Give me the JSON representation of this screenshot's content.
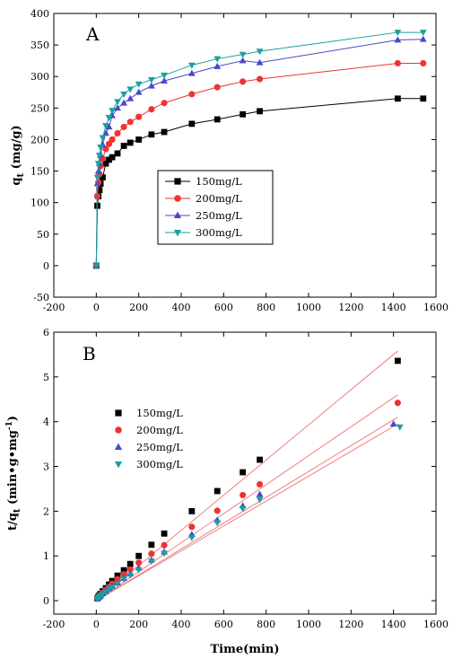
{
  "chart_data": [
    {
      "type": "line",
      "panel_label": "A",
      "title": "",
      "xlabel": "",
      "ylabel": "q",
      "ylabel_sub": "t",
      "ylabel_unit": " (mg/g)",
      "xlim": [
        -200,
        1600
      ],
      "ylim": [
        -50,
        400
      ],
      "xticks": [
        -200,
        0,
        200,
        400,
        600,
        800,
        1000,
        1200,
        1400,
        1600
      ],
      "yticks": [
        -50,
        0,
        50,
        100,
        150,
        200,
        250,
        300,
        350,
        400
      ],
      "legend_position": "center",
      "series": [
        {
          "name": "150mg/L",
          "color": "#000000",
          "marker": "square",
          "x": [
            0,
            5,
            10,
            15,
            20,
            30,
            45,
            60,
            75,
            100,
            130,
            160,
            200,
            260,
            320,
            450,
            570,
            690,
            770,
            1420,
            1540
          ],
          "y": [
            0,
            95,
            110,
            120,
            130,
            140,
            162,
            168,
            172,
            178,
            190,
            195,
            200,
            208,
            212,
            225,
            232,
            240,
            245,
            265,
            265
          ]
        },
        {
          "name": "200mg/L",
          "color": "#ee3333",
          "marker": "circle",
          "x": [
            0,
            5,
            10,
            15,
            20,
            30,
            45,
            60,
            75,
            100,
            130,
            160,
            200,
            260,
            320,
            450,
            570,
            690,
            770,
            1420,
            1540
          ],
          "y": [
            0,
            110,
            132,
            145,
            158,
            170,
            185,
            193,
            200,
            210,
            220,
            228,
            236,
            248,
            258,
            272,
            283,
            292,
            296,
            321,
            321
          ]
        },
        {
          "name": "250mg/L",
          "color": "#4848c8",
          "marker": "triangle-up",
          "x": [
            0,
            5,
            10,
            15,
            20,
            30,
            45,
            60,
            75,
            100,
            130,
            160,
            200,
            260,
            320,
            450,
            570,
            690,
            770,
            1420,
            1540
          ],
          "y": [
            0,
            130,
            150,
            162,
            175,
            192,
            210,
            220,
            238,
            250,
            258,
            265,
            275,
            285,
            293,
            305,
            316,
            325,
            322,
            358,
            359
          ]
        },
        {
          "name": "300mg/L",
          "color": "#1aa0a0",
          "marker": "triangle-down",
          "x": [
            0,
            5,
            10,
            15,
            20,
            30,
            45,
            60,
            75,
            100,
            130,
            160,
            200,
            260,
            320,
            450,
            570,
            690,
            770,
            1420,
            1540
          ],
          "y": [
            0,
            140,
            162,
            175,
            188,
            203,
            222,
            235,
            246,
            260,
            272,
            280,
            288,
            295,
            302,
            318,
            328,
            335,
            340,
            370,
            370
          ]
        }
      ]
    },
    {
      "type": "scatter",
      "panel_label": "B",
      "title": "",
      "xlabel": "Time(min)",
      "ylabel": "t/q",
      "ylabel_sub": "t",
      "ylabel_unit": " (min•g•mg",
      "ylabel_sup": "-1",
      "ylabel_close": ")",
      "xlim": [
        -200,
        1600
      ],
      "ylim": [
        -0.3,
        6
      ],
      "xticks": [
        -200,
        0,
        200,
        400,
        600,
        800,
        1000,
        1200,
        1400,
        1600
      ],
      "yticks": [
        0,
        1,
        2,
        3,
        4,
        5,
        6
      ],
      "legend_position": "top-left",
      "fit_line_color": "#f08080",
      "series": [
        {
          "name": "150mg/L",
          "color": "#000000",
          "marker": "square",
          "x": [
            5,
            10,
            15,
            20,
            30,
            45,
            60,
            75,
            100,
            130,
            160,
            200,
            260,
            320,
            450,
            570,
            690,
            770,
            1420
          ],
          "y": [
            0.05,
            0.09,
            0.12,
            0.15,
            0.21,
            0.28,
            0.36,
            0.44,
            0.56,
            0.68,
            0.82,
            1.0,
            1.25,
            1.5,
            2.0,
            2.45,
            2.87,
            3.15,
            5.36
          ],
          "fit": [
            [
              0,
              0
            ],
            [
              1420,
              5.58
            ]
          ]
        },
        {
          "name": "200mg/L",
          "color": "#ee3333",
          "marker": "circle",
          "x": [
            5,
            10,
            15,
            20,
            30,
            45,
            60,
            75,
            100,
            130,
            160,
            200,
            260,
            320,
            450,
            570,
            690,
            770,
            1420
          ],
          "y": [
            0.05,
            0.08,
            0.1,
            0.13,
            0.18,
            0.24,
            0.31,
            0.38,
            0.48,
            0.59,
            0.7,
            0.85,
            1.05,
            1.24,
            1.65,
            2.01,
            2.36,
            2.6,
            4.42
          ],
          "fit": [
            [
              0,
              0
            ],
            [
              1420,
              4.6
            ]
          ]
        },
        {
          "name": "250mg/L",
          "color": "#4848c8",
          "marker": "triangle-up",
          "x": [
            5,
            10,
            15,
            20,
            30,
            45,
            60,
            75,
            100,
            130,
            160,
            200,
            260,
            320,
            450,
            570,
            690,
            770,
            1400
          ],
          "y": [
            0.04,
            0.07,
            0.09,
            0.11,
            0.16,
            0.21,
            0.27,
            0.32,
            0.4,
            0.5,
            0.6,
            0.73,
            0.91,
            1.09,
            1.48,
            1.8,
            2.12,
            2.38,
            3.95
          ],
          "fit": [
            [
              0,
              0
            ],
            [
              1420,
              4.1
            ]
          ]
        },
        {
          "name": "300mg/L",
          "color": "#1aa0a0",
          "marker": "triangle-down",
          "x": [
            5,
            10,
            15,
            20,
            30,
            45,
            60,
            75,
            100,
            130,
            160,
            200,
            260,
            320,
            450,
            570,
            690,
            770,
            1430
          ],
          "y": [
            0.04,
            0.06,
            0.09,
            0.11,
            0.15,
            0.2,
            0.26,
            0.3,
            0.38,
            0.48,
            0.57,
            0.69,
            0.88,
            1.06,
            1.41,
            1.74,
            2.06,
            2.26,
            3.88
          ],
          "fit": [
            [
              0,
              0
            ],
            [
              1420,
              3.95
            ]
          ]
        }
      ]
    }
  ]
}
